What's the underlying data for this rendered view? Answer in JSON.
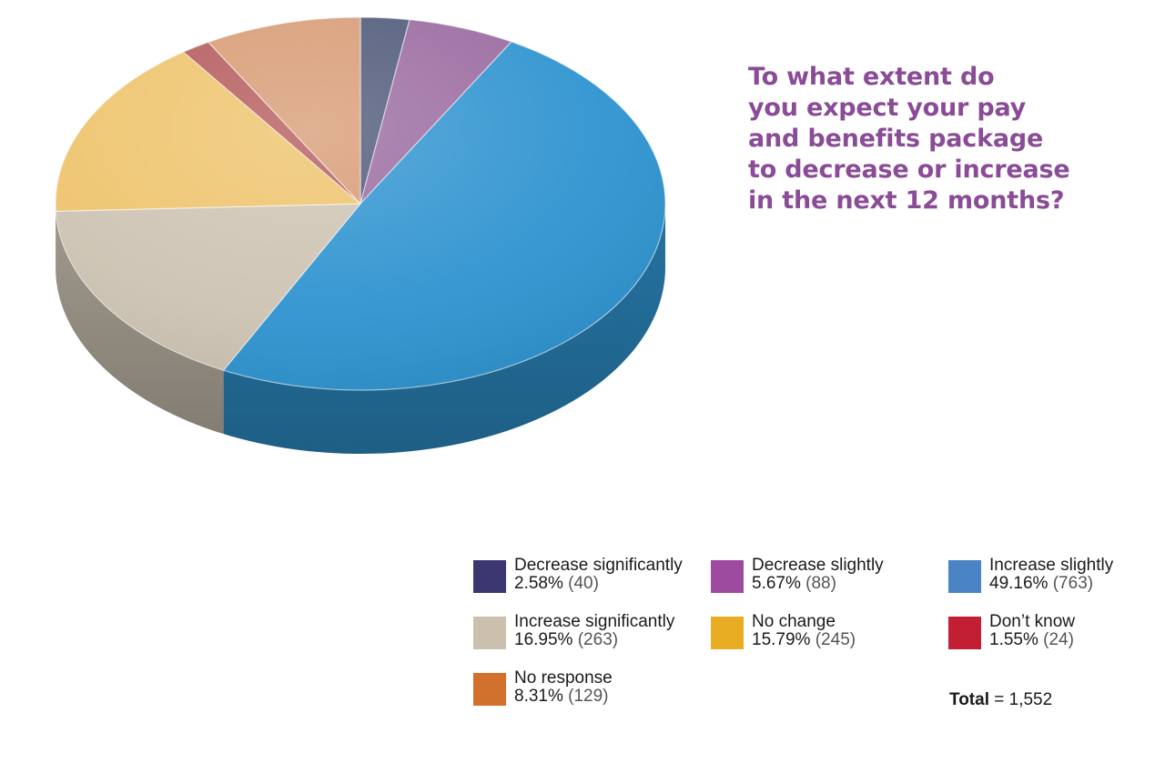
{
  "chart_data": {
    "type": "pie",
    "title": "To what extent do\nyou expect your pay\nand benefits package\nto decrease or increase\nin the next 12 months?",
    "slices": [
      {
        "label": "Decrease significantly",
        "percent": "2.58%",
        "count": "(40)",
        "value": 40,
        "color": "#3b3770",
        "top_color": "#4e5878"
      },
      {
        "label": "Decrease slightly",
        "percent": "5.67%",
        "count": "(88)",
        "value": 88,
        "color": "#9d4b9e",
        "top_color": "#9a6aa0"
      },
      {
        "label": "Increase slightly",
        "percent": "49.16%",
        "count": "(763)",
        "value": 763,
        "color": "#4b84c4",
        "top_color": "#2e93cf"
      },
      {
        "label": "Increase significantly",
        "percent": "16.95%",
        "count": "(263)",
        "value": 263,
        "color": "#cbbfae",
        "top_color": "#cdc3b3"
      },
      {
        "label": "No change",
        "percent": "15.79%",
        "count": "(245)",
        "value": 245,
        "color": "#e9ad23",
        "top_color": "#eec36b"
      },
      {
        "label": "Don’t know",
        "percent": "1.55%",
        "count": "(24)",
        "value": 24,
        "color": "#c21f35",
        "top_color": "#b45a5a"
      },
      {
        "label": "No response",
        "percent": "8.31%",
        "count": "(129)",
        "value": 129,
        "color": "#d2702d",
        "top_color": "#d79b74"
      }
    ],
    "total_label": "Total",
    "total_value": "= 1,552"
  },
  "legend": {
    "items": [
      {
        "label": "Decrease significantly",
        "percent": "2.58%",
        "count": "(40)",
        "color": "#3b3770"
      },
      {
        "label": "Decrease slightly",
        "percent": "5.67%",
        "count": "(88)",
        "color": "#9d4b9e"
      },
      {
        "label": "Increase slightly",
        "percent": "49.16%",
        "count": "(763)",
        "color": "#4b84c4"
      },
      {
        "label": "Increase significantly",
        "percent": "16.95%",
        "count": "(263)",
        "color": "#cbbfae"
      },
      {
        "label": "No change",
        "percent": "15.79%",
        "count": "(245)",
        "color": "#e9ad23"
      },
      {
        "label": "Don’t know",
        "percent": "1.55%",
        "count": "(24)",
        "color": "#c21f35"
      },
      {
        "label": "No response",
        "percent": "8.31%",
        "count": "(129)",
        "color": "#d2702d"
      }
    ]
  }
}
